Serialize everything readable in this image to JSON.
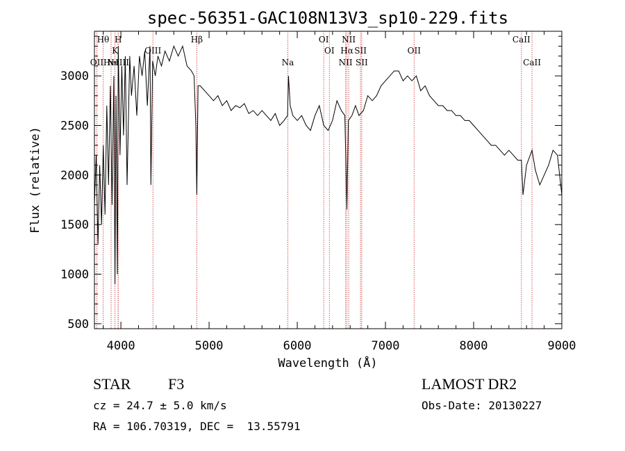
{
  "chart_data": {
    "type": "line",
    "title": "spec-56351-GAC108N13V3_sp10-229.fits",
    "xlabel": "Wavelength (Å)",
    "ylabel": "Flux (relative)",
    "xlim": [
      3700,
      9000
    ],
    "ylim": [
      450,
      3450
    ],
    "xticks": [
      4000,
      5000,
      6000,
      7000,
      8000,
      9000
    ],
    "yticks": [
      500,
      1000,
      1500,
      2000,
      2500,
      3000
    ],
    "grid": false,
    "series": [
      {
        "x": [
          3700,
          3720,
          3740,
          3760,
          3780,
          3800,
          3820,
          3840,
          3860,
          3880,
          3900,
          3920,
          3933,
          3945,
          3960,
          3970,
          3990,
          4010,
          4030,
          4050,
          4070,
          4100,
          4120,
          4150,
          4180,
          4210,
          4240,
          4270,
          4300,
          4330,
          4340,
          4360,
          4390,
          4420,
          4460,
          4500,
          4550,
          4600,
          4650,
          4700,
          4750,
          4800,
          4830,
          4850,
          4861,
          4875,
          4900,
          4950,
          5000,
          5050,
          5100,
          5150,
          5200,
          5250,
          5300,
          5350,
          5400,
          5450,
          5500,
          5550,
          5600,
          5650,
          5700,
          5750,
          5800,
          5850,
          5890,
          5900,
          5920,
          5950,
          6000,
          6050,
          6100,
          6150,
          6200,
          6250,
          6300,
          6350,
          6400,
          6450,
          6500,
          6540,
          6563,
          6580,
          6620,
          6660,
          6700,
          6750,
          6800,
          6850,
          6900,
          6950,
          7000,
          7050,
          7100,
          7150,
          7200,
          7250,
          7300,
          7350,
          7400,
          7450,
          7500,
          7550,
          7600,
          7650,
          7700,
          7750,
          7800,
          7850,
          7900,
          7950,
          8000,
          8050,
          8100,
          8150,
          8200,
          8250,
          8300,
          8350,
          8400,
          8450,
          8500,
          8542,
          8560,
          8600,
          8662,
          8700,
          8750,
          8800,
          8850,
          8900,
          8950,
          9000
        ],
        "y": [
          1700,
          2200,
          1300,
          2100,
          1500,
          2300,
          1600,
          2700,
          1900,
          2900,
          1700,
          3000,
          900,
          2800,
          1000,
          3300,
          2200,
          3100,
          2400,
          3200,
          1900,
          3200,
          2800,
          3100,
          2600,
          3200,
          3000,
          3250,
          2700,
          3300,
          1900,
          3150,
          3000,
          3200,
          3100,
          3250,
          3150,
          3300,
          3200,
          3300,
          3100,
          3050,
          3000,
          2500,
          1800,
          2900,
          2900,
          2850,
          2800,
          2750,
          2800,
          2700,
          2750,
          2650,
          2700,
          2680,
          2720,
          2620,
          2650,
          2600,
          2650,
          2600,
          2550,
          2620,
          2500,
          2550,
          2600,
          3000,
          2700,
          2600,
          2550,
          2600,
          2500,
          2450,
          2600,
          2700,
          2500,
          2450,
          2550,
          2750,
          2650,
          2600,
          1650,
          2550,
          2600,
          2700,
          2600,
          2650,
          2800,
          2750,
          2800,
          2900,
          2950,
          3000,
          3050,
          3050,
          2950,
          3000,
          2950,
          3000,
          2850,
          2900,
          2800,
          2750,
          2700,
          2700,
          2650,
          2650,
          2600,
          2600,
          2550,
          2550,
          2500,
          2450,
          2400,
          2350,
          2300,
          2300,
          2250,
          2200,
          2250,
          2200,
          2150,
          2150,
          1800,
          2100,
          2250,
          2050,
          1900,
          2000,
          2100,
          2250,
          2200,
          1800
        ]
      }
    ],
    "lines": [
      {
        "label": "Hθ",
        "x": 3798,
        "row": "top"
      },
      {
        "label": "OII",
        "x": 3727,
        "row": "low"
      },
      {
        "label": "H",
        "x": 3970,
        "row": "top"
      },
      {
        "label": "K",
        "x": 3933,
        "row": "mid"
      },
      {
        "label": "HeI",
        "x": 3889,
        "row": "low"
      },
      {
        "label": "NeIII",
        "x": 3968,
        "row": "low"
      },
      {
        "label": "OIII",
        "x": 4363,
        "row": "midlow"
      },
      {
        "label": "Hβ",
        "x": 4861,
        "row": "top"
      },
      {
        "label": "Na",
        "x": 5893,
        "row": "low"
      },
      {
        "label": "OI",
        "x": 6300,
        "row": "top"
      },
      {
        "label": "OI",
        "x": 6364,
        "row": "mid"
      },
      {
        "label": "NII",
        "x": 6583,
        "row": "top"
      },
      {
        "label": "Hα",
        "x": 6563,
        "row": "mid"
      },
      {
        "label": "NII",
        "x": 6548,
        "row": "low"
      },
      {
        "label": "SII",
        "x": 6717,
        "row": "mid"
      },
      {
        "label": "SII",
        "x": 6731,
        "row": "low"
      },
      {
        "label": "OII",
        "x": 7325,
        "row": "mid"
      },
      {
        "label": "CaII",
        "x": 8542,
        "row": "top"
      },
      {
        "label": "CaII",
        "x": 8662,
        "row": "low"
      }
    ]
  },
  "info": {
    "object": "STAR",
    "subclass": "F3",
    "survey": "LAMOST DR2",
    "cz": "cz = 24.7 ± 5.0 km/s",
    "obs_date": "Obs-Date: 20130227",
    "coords": "RA = 106.70319, DEC =  13.55791"
  },
  "colors": {
    "spectrum": "#000000",
    "line_marker": "#cc3333"
  }
}
